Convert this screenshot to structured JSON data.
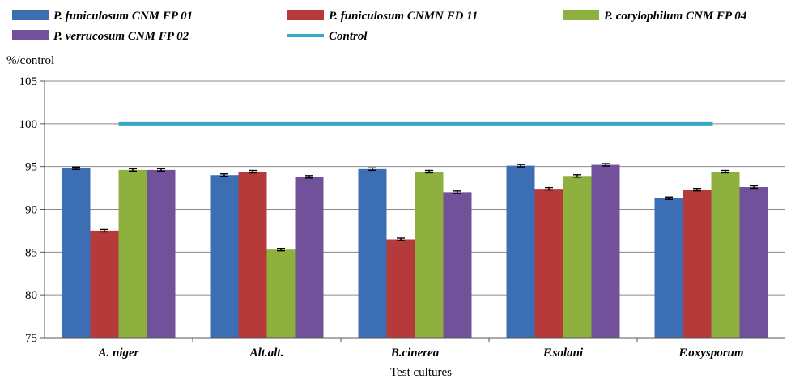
{
  "chart_data": {
    "type": "bar",
    "xlabel": "Test cultures",
    "ylabel": "%/control",
    "ylim": [
      75,
      105
    ],
    "yticks": [
      75,
      80,
      85,
      90,
      95,
      100,
      105
    ],
    "grid": true,
    "legend_position": "top",
    "categories": [
      "A. niger",
      "Alt.alt.",
      "B.cinerea",
      "F.solani",
      "F.oxysporum"
    ],
    "series": [
      {
        "name": "P. funiculosum CNM FP 01",
        "color": "#3C6EB4",
        "values": [
          94.8,
          94.0,
          94.7,
          95.1,
          91.3
        ]
      },
      {
        "name": "P. funiculosum CNMN FD 11",
        "color": "#B73A3A",
        "values": [
          87.5,
          94.4,
          86.5,
          92.4,
          92.3
        ]
      },
      {
        "name": "P. corylophilum CNM FP 04",
        "color": "#8DB03E",
        "values": [
          94.6,
          85.3,
          94.4,
          93.9,
          94.4
        ]
      },
      {
        "name": "P. verrucosum CNM FP 02",
        "color": "#71519A",
        "values": [
          94.6,
          93.8,
          92.0,
          95.2,
          92.6
        ]
      }
    ],
    "control": {
      "name": "Control",
      "color": "#36A8C9",
      "value": 100
    }
  }
}
